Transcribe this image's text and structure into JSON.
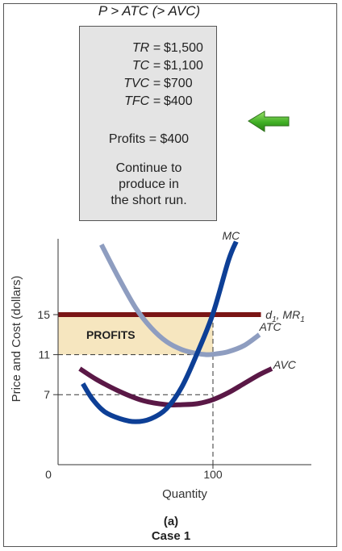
{
  "header": {
    "title": "P > ATC (> AVC)"
  },
  "info_box": {
    "rows": [
      {
        "label": "TR =",
        "value": "$1,500"
      },
      {
        "label": "TC =",
        "value": "$1,100"
      },
      {
        "label": "TVC =",
        "value": "$700"
      },
      {
        "label": "TFC =",
        "value": "$400"
      }
    ],
    "profits": "Profits = $400",
    "advice": [
      "Continue to",
      "produce in",
      "the short run."
    ]
  },
  "arrow_icon": "green-left-arrow",
  "chart_data": {
    "type": "line",
    "xlabel": "Quantity",
    "ylabel": "Price and Cost (dollars)",
    "x_ticks": [
      {
        "value": 0,
        "label": "0"
      },
      {
        "value": 100,
        "label": "100"
      }
    ],
    "y_ticks": [
      {
        "value": 7,
        "label": "7"
      },
      {
        "value": 11,
        "label": "11"
      },
      {
        "value": 15,
        "label": "15"
      }
    ],
    "xlim": [
      0,
      160
    ],
    "ylim": [
      0,
      22
    ],
    "price": 15,
    "quantity": 100,
    "atc_at_q": 11,
    "avc_at_q": 7,
    "profit_region_label": "PROFITS",
    "series": [
      {
        "name": "MC",
        "color": "#0d3f96",
        "x": [
          16,
          22,
          30,
          40,
          50,
          60,
          70,
          80,
          90,
          100,
          110,
          115
        ],
        "y": [
          8.1,
          6.6,
          5.3,
          4.6,
          4.3,
          4.6,
          5.6,
          7.8,
          11.2,
          15.1,
          20.4,
          22.3
        ]
      },
      {
        "name": "ATC",
        "color": "#8e9dc0",
        "x": [
          28,
          38,
          50,
          60,
          70,
          80,
          90,
          97,
          103,
          110,
          120,
          130
        ],
        "y": [
          22.0,
          19.0,
          15.7,
          13.7,
          12.3,
          11.5,
          11.1,
          11.0,
          11.1,
          11.3,
          11.9,
          13.0
        ]
      },
      {
        "name": "AVC",
        "color": "#5a1846",
        "x": [
          14,
          25,
          40,
          55,
          70,
          80,
          90,
          100,
          110,
          120,
          130,
          138
        ],
        "y": [
          9.6,
          8.5,
          7.3,
          6.4,
          6.0,
          6.0,
          6.1,
          6.5,
          7.2,
          8.1,
          9.0,
          9.6
        ]
      },
      {
        "name": "d1, MR1",
        "color": "#7a1515",
        "x": [
          0,
          131
        ],
        "y": [
          15,
          15
        ]
      }
    ]
  },
  "footer": {
    "panel": "(a)",
    "case": "Case 1"
  }
}
